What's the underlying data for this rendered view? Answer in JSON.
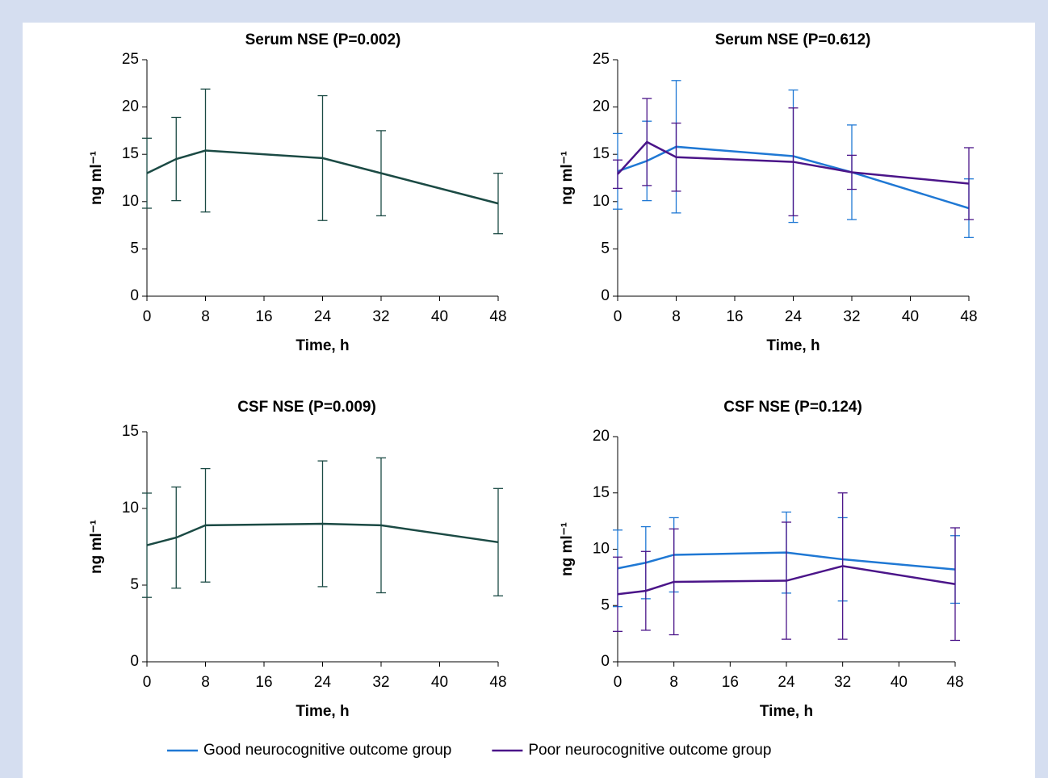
{
  "chart_data": [
    {
      "type": "line",
      "title": "Serum NSE (P=0.002)",
      "xlabel": "Time, h",
      "ylabel": "ng ml⁻¹",
      "x": [
        0,
        4,
        8,
        24,
        32,
        48
      ],
      "xlim": [
        0,
        48
      ],
      "xticks": [
        0,
        8,
        16,
        24,
        32,
        40,
        48
      ],
      "ylim": [
        0,
        25
      ],
      "yticks": [
        0,
        5,
        10,
        15,
        20,
        25
      ],
      "color": "#1b4a44",
      "values": [
        13.0,
        14.5,
        15.4,
        14.6,
        13.0,
        9.8
      ],
      "errors": [
        3.7,
        4.4,
        6.5,
        6.6,
        4.5,
        3.2
      ]
    },
    {
      "type": "line",
      "title": "Serum NSE (P=0.612)",
      "xlabel": "Time, h",
      "ylabel": "ng ml⁻¹",
      "x": [
        0,
        4,
        8,
        24,
        32,
        48
      ],
      "xlim": [
        0,
        48
      ],
      "xticks": [
        0,
        8,
        16,
        24,
        32,
        40,
        48
      ],
      "ylim": [
        0,
        25
      ],
      "yticks": [
        0,
        5,
        10,
        15,
        20,
        25
      ],
      "series": [
        {
          "name": "Good neurocognitive outcome group",
          "color": "#1f78d4",
          "values": [
            13.2,
            14.3,
            15.8,
            14.8,
            13.1,
            9.3
          ],
          "errors": [
            4.0,
            4.2,
            7.0,
            7.0,
            5.0,
            3.1
          ]
        },
        {
          "name": "Poor neurocognitive outcome group",
          "color": "#4b1589",
          "values": [
            12.9,
            16.3,
            14.7,
            14.2,
            13.1,
            11.9
          ],
          "errors": [
            1.5,
            4.6,
            3.6,
            5.7,
            1.8,
            3.8
          ]
        }
      ]
    },
    {
      "type": "line",
      "title": "CSF NSE (P=0.009)",
      "xlabel": "Time, h",
      "ylabel": "ng ml⁻¹",
      "x": [
        0,
        4,
        8,
        24,
        32,
        48
      ],
      "xlim": [
        0,
        48
      ],
      "xticks": [
        0,
        8,
        16,
        24,
        32,
        40,
        48
      ],
      "ylim": [
        0,
        15
      ],
      "yticks": [
        0,
        5,
        10,
        15
      ],
      "color": "#1b4a44",
      "values": [
        7.6,
        8.1,
        8.9,
        9.0,
        8.9,
        7.8
      ],
      "errors": [
        3.4,
        3.3,
        3.7,
        4.1,
        4.4,
        3.5
      ]
    },
    {
      "type": "line",
      "title": "CSF NSE (P=0.124)",
      "xlabel": "Time, h",
      "ylabel": "ng ml⁻¹",
      "x": [
        0,
        4,
        8,
        24,
        32,
        48
      ],
      "xlim": [
        0,
        48
      ],
      "xticks": [
        0,
        8,
        16,
        24,
        32,
        40,
        48
      ],
      "ylim": [
        0,
        20
      ],
      "yticks": [
        0,
        5,
        10,
        15,
        20
      ],
      "series": [
        {
          "color": "#1f78d4",
          "values": [
            8.3,
            8.8,
            9.5,
            9.7,
            9.1,
            8.2
          ],
          "errors": [
            3.4,
            3.2,
            3.3,
            3.6,
            3.7,
            3.0
          ]
        },
        {
          "color": "#4b1589",
          "values": [
            6.0,
            6.3,
            7.1,
            7.2,
            8.5,
            6.9
          ],
          "errors": [
            3.3,
            3.5,
            4.7,
            5.2,
            6.5,
            5.0
          ]
        }
      ]
    }
  ]
}
